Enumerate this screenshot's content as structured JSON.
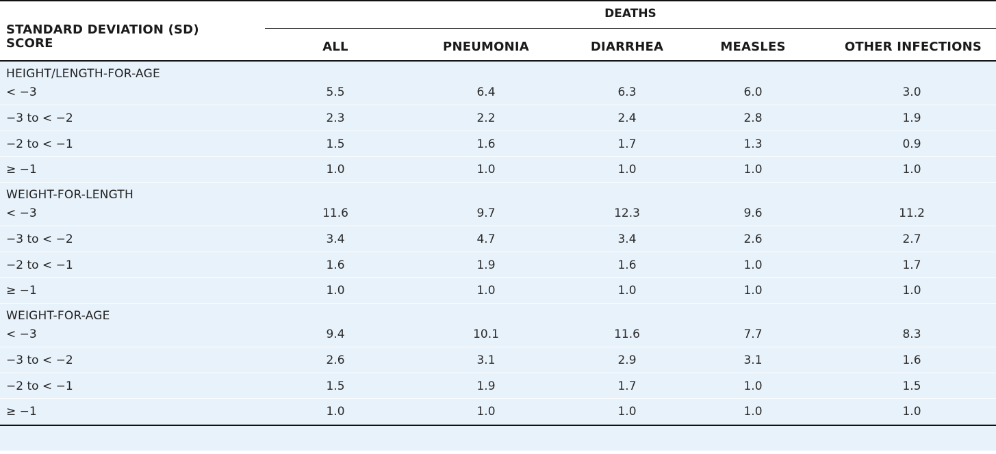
{
  "table": {
    "header": {
      "sd_label_line1": "STANDARD DEVIATION (SD)",
      "sd_label_line2": "SCORE",
      "deaths_label": "DEATHS",
      "columns": [
        "ALL",
        "PNEUMONIA",
        "DIARRHEA",
        "MEASLES",
        "OTHER INFECTIONS"
      ]
    },
    "sections": [
      {
        "title": "HEIGHT/LENGTH-FOR-AGE",
        "rows": [
          {
            "label": "< −3",
            "values": [
              "5.5",
              "6.4",
              "6.3",
              "6.0",
              "3.0"
            ]
          },
          {
            "label": "−3 to < −2",
            "values": [
              "2.3",
              "2.2",
              "2.4",
              "2.8",
              "1.9"
            ]
          },
          {
            "label": "−2 to < −1",
            "values": [
              "1.5",
              "1.6",
              "1.7",
              "1.3",
              "0.9"
            ]
          },
          {
            "label": "≥ −1",
            "values": [
              "1.0",
              "1.0",
              "1.0",
              "1.0",
              "1.0"
            ]
          }
        ]
      },
      {
        "title": "WEIGHT-FOR-LENGTH",
        "rows": [
          {
            "label": "< −3",
            "values": [
              "11.6",
              "9.7",
              "12.3",
              "9.6",
              "11.2"
            ]
          },
          {
            "label": "−3 to < −2",
            "values": [
              "3.4",
              "4.7",
              "3.4",
              "2.6",
              "2.7"
            ]
          },
          {
            "label": "−2 to < −1",
            "values": [
              "1.6",
              "1.9",
              "1.6",
              "1.0",
              "1.7"
            ]
          },
          {
            "label": "≥ −1",
            "values": [
              "1.0",
              "1.0",
              "1.0",
              "1.0",
              "1.0"
            ]
          }
        ]
      },
      {
        "title": "WEIGHT-FOR-AGE",
        "rows": [
          {
            "label": "< −3",
            "values": [
              "9.4",
              "10.1",
              "11.6",
              "7.7",
              "8.3"
            ]
          },
          {
            "label": "−3 to < −2",
            "values": [
              "2.6",
              "3.1",
              "2.9",
              "3.1",
              "1.6"
            ]
          },
          {
            "label": "−2 to < −1",
            "values": [
              "1.5",
              "1.9",
              "1.7",
              "1.0",
              "1.5"
            ]
          },
          {
            "label": "≥ −1",
            "values": [
              "1.0",
              "1.0",
              "1.0",
              "1.0",
              "1.0"
            ]
          }
        ]
      }
    ]
  }
}
